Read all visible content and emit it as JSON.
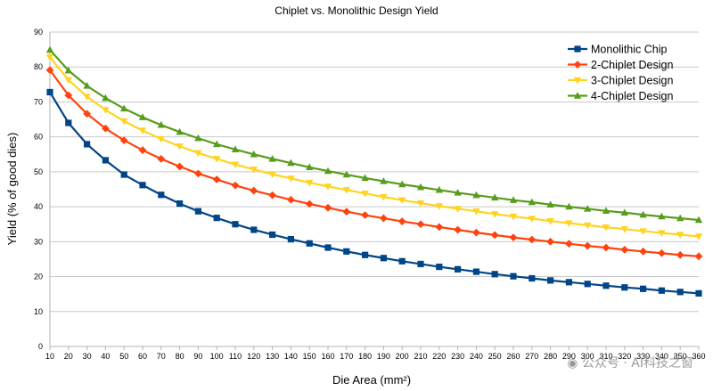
{
  "chart_data": {
    "type": "line",
    "title": "Chiplet vs. Monolithic Design Yield",
    "xlabel": "Die Area (mm²)",
    "ylabel": "Yield (% of good dies)",
    "ylim": [
      0,
      90
    ],
    "yticks": [
      0,
      10,
      20,
      30,
      40,
      50,
      60,
      70,
      80,
      90
    ],
    "grid": true,
    "legend_position": "top-right",
    "x": [
      10,
      20,
      30,
      40,
      50,
      60,
      70,
      80,
      90,
      100,
      110,
      120,
      130,
      140,
      150,
      160,
      170,
      180,
      190,
      200,
      210,
      220,
      230,
      240,
      250,
      260,
      270,
      280,
      290,
      300,
      310,
      320,
      330,
      340,
      350,
      360
    ],
    "series": [
      {
        "name": "Monolithic Chip",
        "color": "#004586",
        "marker": "square",
        "values": [
          72.8,
          64.0,
          57.9,
          53.3,
          49.2,
          46.2,
          43.4,
          40.9,
          38.7,
          36.8,
          35.0,
          33.4,
          32.0,
          30.7,
          29.5,
          28.3,
          27.2,
          26.2,
          25.3,
          24.4,
          23.6,
          22.8,
          22.1,
          21.4,
          20.7,
          20.1,
          19.5,
          18.9,
          18.4,
          17.9,
          17.4,
          16.9,
          16.5,
          16.0,
          15.6,
          15.2
        ]
      },
      {
        "name": "2-Chiplet Design",
        "color": "#ff420e",
        "marker": "diamond",
        "values": [
          79.1,
          71.9,
          66.6,
          62.4,
          59.0,
          56.2,
          53.7,
          51.5,
          49.5,
          47.8,
          46.1,
          44.6,
          43.3,
          42.0,
          40.8,
          39.7,
          38.6,
          37.6,
          36.7,
          35.8,
          35.0,
          34.2,
          33.4,
          32.6,
          31.9,
          31.2,
          30.6,
          30.0,
          29.4,
          28.8,
          28.3,
          27.7,
          27.2,
          26.7,
          26.2,
          25.8
        ]
      },
      {
        "name": "3-Chiplet Design",
        "color": "#ffd320",
        "marker": "triangle-down",
        "values": [
          82.8,
          76.3,
          71.5,
          67.7,
          64.5,
          61.8,
          59.4,
          57.3,
          55.4,
          53.7,
          52.1,
          50.7,
          49.3,
          48.1,
          46.9,
          45.8,
          44.8,
          43.8,
          42.8,
          41.9,
          41.0,
          40.2,
          39.4,
          38.7,
          37.9,
          37.2,
          36.6,
          35.9,
          35.3,
          34.7,
          34.1,
          33.6,
          33.0,
          32.5,
          32.0,
          31.5
        ]
      },
      {
        "name": "4-Chiplet Design",
        "color": "#579d1c",
        "marker": "triangle-up",
        "values": [
          84.9,
          79.0,
          74.6,
          71.1,
          68.1,
          65.6,
          63.4,
          61.4,
          59.6,
          57.9,
          56.4,
          55.0,
          53.7,
          52.5,
          51.3,
          50.2,
          49.2,
          48.2,
          47.3,
          46.4,
          45.6,
          44.8,
          44.0,
          43.3,
          42.6,
          41.9,
          41.3,
          40.6,
          40.0,
          39.4,
          38.8,
          38.3,
          37.7,
          37.2,
          36.7,
          36.2
        ]
      }
    ]
  },
  "watermark": "公众号 · AI科技之窗"
}
